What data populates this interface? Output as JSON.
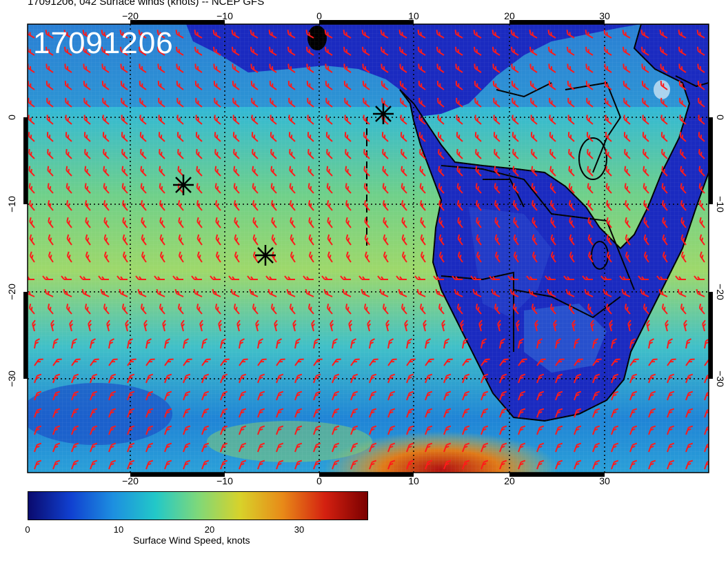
{
  "title": "17091206, 042 Surface winds (knots) -- NCEP GFS",
  "timestamp": "17091206",
  "lon_ticks": [
    "−20",
    "−10",
    "0",
    "10",
    "20",
    "30"
  ],
  "lat_ticks": [
    "0",
    "−10",
    "−20",
    "−30"
  ],
  "colorbar": {
    "label": "Surface Wind Speed, knots",
    "ticks": [
      "0",
      "10",
      "20",
      "30"
    ],
    "colors": [
      "#0a0a6e",
      "#1040d0",
      "#1d8fe0",
      "#22c8c8",
      "#7ed87a",
      "#d8d22a",
      "#e88a18",
      "#d42010",
      "#7a0000"
    ],
    "range": [
      0,
      37
    ]
  },
  "colors": {
    "barb": "#ff1a1a",
    "ocean_base": "#2aa0d8",
    "land": "#1a2ac0",
    "coast": "#000000"
  },
  "markers": [
    "star-marker",
    "star-marker",
    "star-marker"
  ]
}
